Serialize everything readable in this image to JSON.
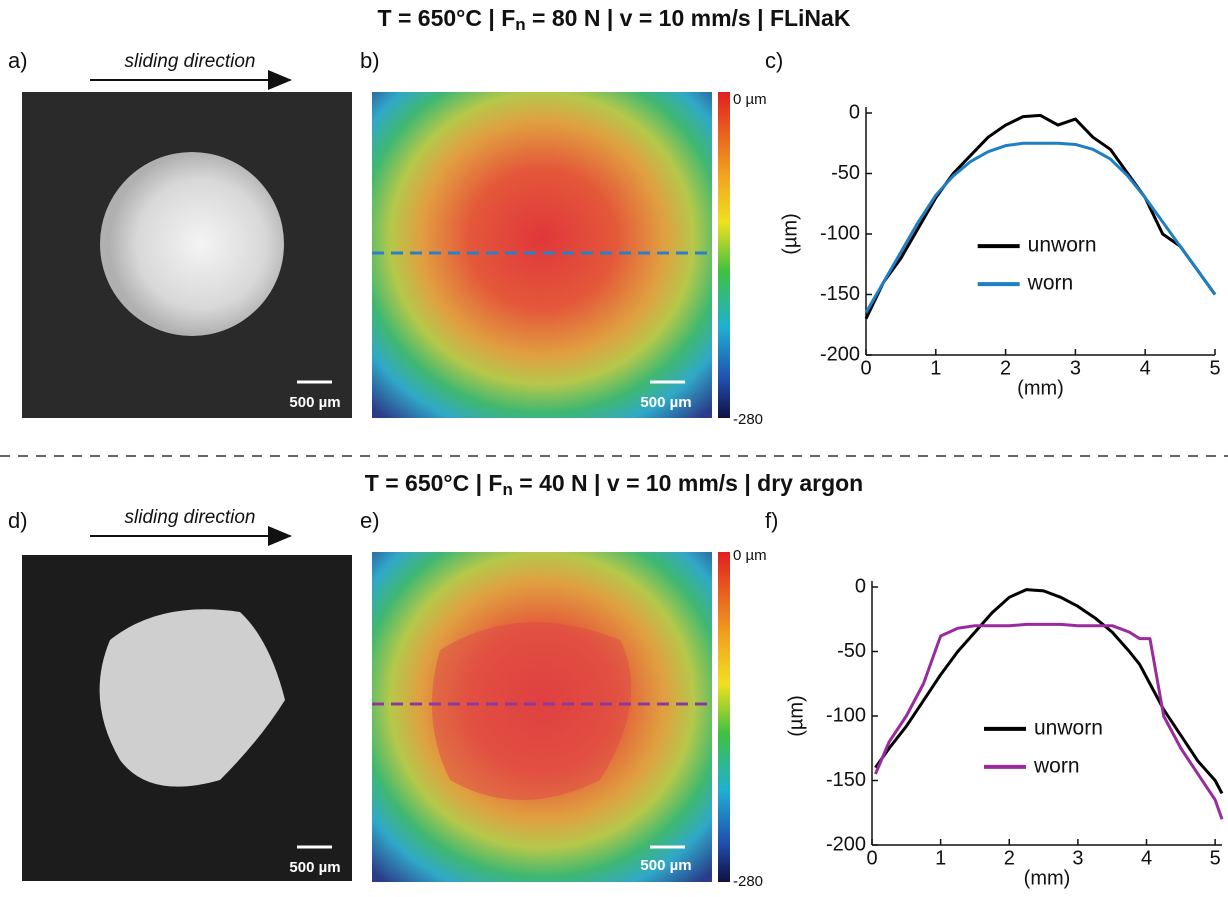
{
  "rows": [
    {
      "title": [
        "T = 650°C | F",
        "n",
        " = 80 N | v = 10 mm/s | FLiNaK"
      ],
      "panels": [
        "a)",
        "b)",
        "c)"
      ],
      "sliding": "sliding direction",
      "scale": "500 µm",
      "colorbar": [
        "0 µm",
        "-280"
      ]
    },
    {
      "title": [
        "T = 650°C | F",
        "n",
        " = 40 N | v = 10 mm/s | dry argon"
      ],
      "panels": [
        "d)",
        "e)",
        "f)"
      ],
      "sliding": "sliding direction",
      "scale": "500 µm",
      "colorbar": [
        "0 µm",
        "-280"
      ]
    }
  ],
  "chart_data": [
    {
      "type": "line",
      "xlabel": "(mm)",
      "ylabel": "(µm)",
      "x": [
        0,
        0.25,
        0.5,
        0.75,
        1,
        1.25,
        1.5,
        1.75,
        2,
        2.25,
        2.5,
        2.75,
        3,
        3.25,
        3.5,
        3.75,
        4,
        4.25,
        4.5,
        4.75,
        5
      ],
      "series": [
        {
          "name": "unworn",
          "color": "#000000",
          "values": [
            -170,
            -140,
            -120,
            -95,
            -70,
            -50,
            -35,
            -20,
            -10,
            -3,
            -2,
            -10,
            -5,
            -20,
            -30,
            -50,
            -70,
            -100,
            -110,
            -130,
            -150
          ]
        },
        {
          "name": "worn",
          "color": "#1f7fc4",
          "values": [
            -165,
            -140,
            -115,
            -90,
            -68,
            -52,
            -40,
            -32,
            -27,
            -25,
            -25,
            -25,
            -26,
            -30,
            -38,
            -52,
            -70,
            -90,
            -110,
            -130,
            -150
          ]
        }
      ],
      "xlim": [
        0,
        5
      ],
      "ylim": [
        -200,
        0
      ],
      "xticks": [
        0,
        1,
        2,
        3,
        4,
        5
      ],
      "yticks": [
        0,
        -50,
        -100,
        -150,
        -200
      ],
      "legend": "center-right"
    },
    {
      "type": "line",
      "xlabel": "(mm)",
      "ylabel": "(µm)",
      "x": [
        0.05,
        0.25,
        0.5,
        0.75,
        1,
        1.25,
        1.5,
        1.75,
        2,
        2.25,
        2.5,
        2.75,
        3,
        3.25,
        3.5,
        3.75,
        3.9,
        4.05,
        4.25,
        4.5,
        4.75,
        5,
        5.1
      ],
      "series": [
        {
          "name": "unworn",
          "color": "#000000",
          "values": [
            -140,
            -125,
            -108,
            -88,
            -68,
            -50,
            -35,
            -20,
            -8,
            -2,
            -3,
            -8,
            -15,
            -24,
            -35,
            -50,
            -60,
            -75,
            -95,
            -115,
            -135,
            -150,
            -160
          ]
        },
        {
          "name": "worn",
          "color": "#9a2a9e",
          "values": [
            -145,
            -120,
            -100,
            -75,
            -38,
            -32,
            -30,
            -30,
            -30,
            -29,
            -29,
            -29,
            -30,
            -30,
            -30,
            -35,
            -40,
            -40,
            -100,
            -125,
            -145,
            -165,
            -180
          ]
        }
      ],
      "xlim": [
        0,
        5.1
      ],
      "ylim": [
        -200,
        0
      ],
      "xticks": [
        0,
        1,
        2,
        3,
        4,
        5
      ],
      "yticks": [
        0,
        -50,
        -100,
        -150,
        -200
      ],
      "legend": "center-right"
    }
  ]
}
